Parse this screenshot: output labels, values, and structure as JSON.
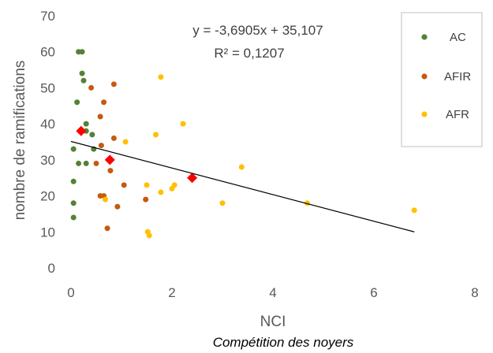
{
  "chart_data": {
    "type": "scatter",
    "x_ticks": [
      "0",
      "2",
      "4",
      "6",
      "8"
    ],
    "y_ticks": [
      "0",
      "10",
      "20",
      "30",
      "40",
      "50",
      "60",
      "70"
    ],
    "xlim": [
      0,
      8
    ],
    "ylim": [
      0,
      70
    ],
    "xlabel": "NCI",
    "ylabel": "nombre de ramifications",
    "subtitle": "Compétition des noyers",
    "grid": false,
    "legend_position": "top-right",
    "trendline": {
      "equation": "y = -3,6905x + 35,107",
      "r2": "R² = 0,1207",
      "slope": -3.6905,
      "intercept": 35.107,
      "x_range": [
        0,
        6.8
      ],
      "color": "#000000"
    },
    "series": [
      {
        "name": "AC",
        "color": "#548235",
        "points": [
          [
            0.15,
            60
          ],
          [
            0.22,
            60
          ],
          [
            0.22,
            54
          ],
          [
            0.25,
            52
          ],
          [
            0.12,
            46
          ],
          [
            0.3,
            40
          ],
          [
            0.3,
            38
          ],
          [
            0.42,
            37
          ],
          [
            0.05,
            33
          ],
          [
            0.45,
            33
          ],
          [
            0.15,
            29
          ],
          [
            0.3,
            29
          ],
          [
            0.05,
            24
          ],
          [
            0.05,
            18
          ],
          [
            0.05,
            14
          ]
        ]
      },
      {
        "name": "AFIR",
        "color": "#C55A11",
        "points": [
          [
            0.4,
            50
          ],
          [
            0.85,
            51
          ],
          [
            0.65,
            46
          ],
          [
            0.58,
            42
          ],
          [
            0.85,
            36
          ],
          [
            0.6,
            34
          ],
          [
            0.5,
            29
          ],
          [
            0.78,
            27
          ],
          [
            1.05,
            23
          ],
          [
            0.58,
            20
          ],
          [
            0.65,
            20
          ],
          [
            1.48,
            19
          ],
          [
            0.92,
            17
          ],
          [
            0.72,
            11
          ]
        ]
      },
      {
        "name": "AFR",
        "color": "#FFC000",
        "points": [
          [
            1.78,
            53
          ],
          [
            2.22,
            40
          ],
          [
            1.68,
            37
          ],
          [
            1.08,
            35
          ],
          [
            3.38,
            28
          ],
          [
            1.5,
            23
          ],
          [
            2.05,
            23
          ],
          [
            1.78,
            21
          ],
          [
            2.0,
            22
          ],
          [
            0.68,
            19
          ],
          [
            3.0,
            18
          ],
          [
            4.68,
            18
          ],
          [
            6.8,
            16
          ],
          [
            1.52,
            10
          ],
          [
            1.55,
            9
          ]
        ]
      },
      {
        "name": "",
        "color": "#FF0000",
        "marker": "diamond",
        "points": [
          [
            0.2,
            38
          ],
          [
            0.77,
            30
          ],
          [
            2.4,
            25
          ]
        ]
      }
    ]
  }
}
